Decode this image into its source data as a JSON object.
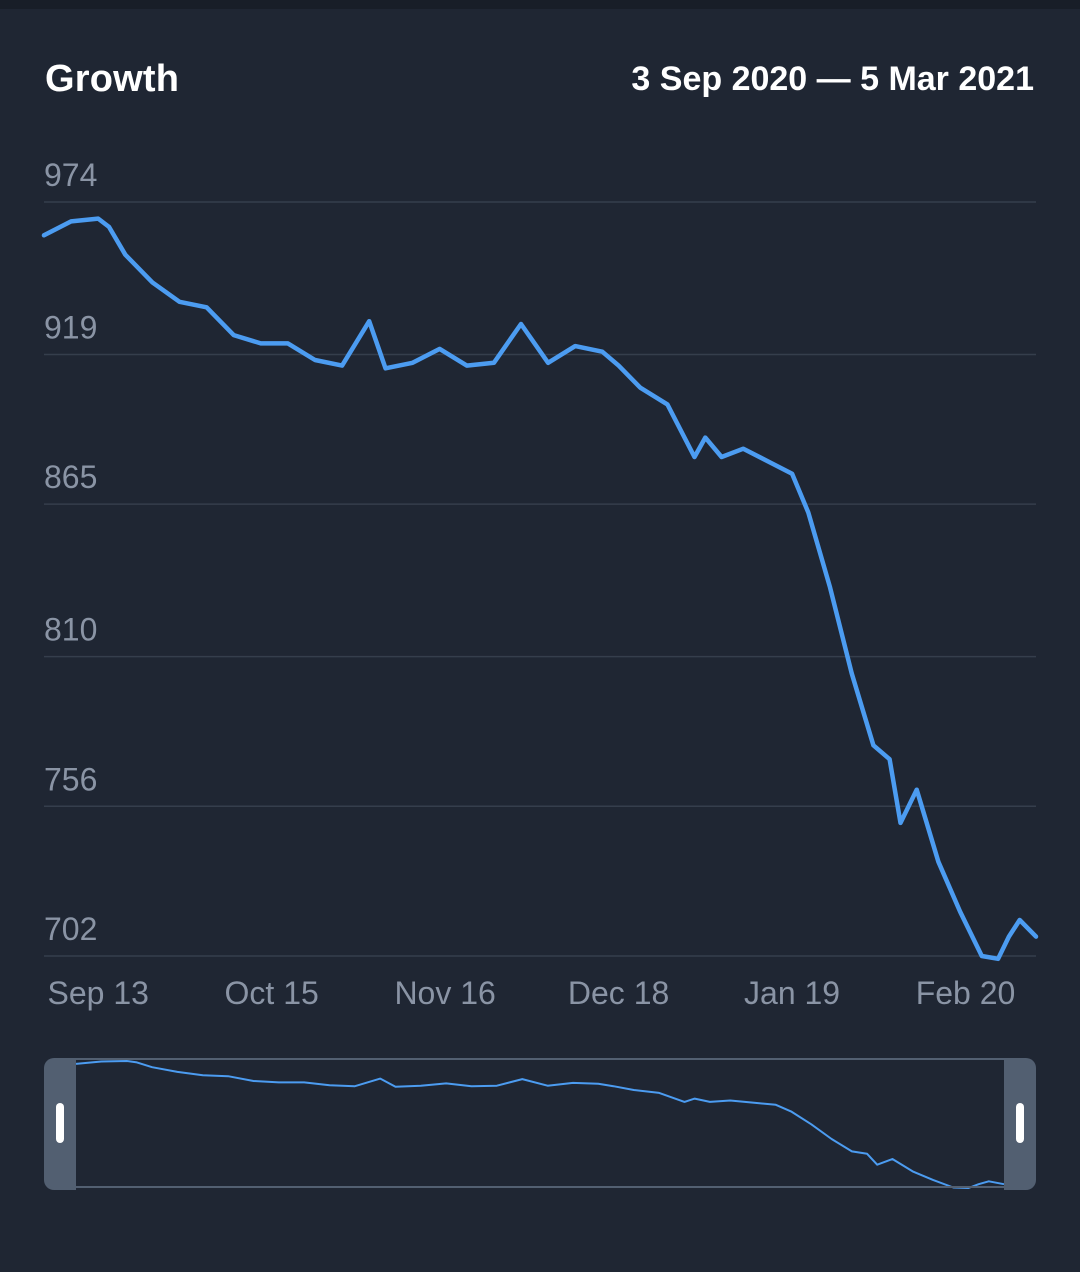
{
  "header": {
    "title": "Growth",
    "date_range": "3 Sep 2020 — 5 Mar 2021"
  },
  "colors": {
    "background": "#1f2633",
    "series": "#4c9cf1",
    "grid": "#353e4c",
    "tick": "#8a94a5",
    "handle": "#525f71"
  },
  "chart_data": {
    "type": "line",
    "title": "Growth",
    "subtitle": "3 Sep 2020 — 5 Mar 2021",
    "xlabel": "",
    "ylabel": "",
    "x_ticks": [
      "Sep 13",
      "Oct 15",
      "Nov 16",
      "Dec 18",
      "Jan 19",
      "Feb 20"
    ],
    "x_tick_dates": [
      "2020-09-13",
      "2020-10-15",
      "2020-11-16",
      "2020-12-18",
      "2021-01-19",
      "2021-02-20"
    ],
    "y_ticks": [
      974,
      919,
      865,
      810,
      756,
      702
    ],
    "ylim": [
      702,
      974
    ],
    "xlim": [
      "2020-09-03",
      "2021-03-05"
    ],
    "grid": true,
    "legend": "none",
    "series": [
      {
        "name": "",
        "x": [
          "2020-09-03",
          "2020-09-08",
          "2020-09-13",
          "2020-09-15",
          "2020-09-18",
          "2020-09-23",
          "2020-09-28",
          "2020-10-03",
          "2020-10-08",
          "2020-10-13",
          "2020-10-18",
          "2020-10-23",
          "2020-10-28",
          "2020-11-02",
          "2020-11-05",
          "2020-11-10",
          "2020-11-15",
          "2020-11-20",
          "2020-11-25",
          "2020-11-30",
          "2020-12-05",
          "2020-12-10",
          "2020-12-15",
          "2020-12-18",
          "2020-12-22",
          "2020-12-27",
          "2021-01-01",
          "2021-01-03",
          "2021-01-06",
          "2021-01-10",
          "2021-01-15",
          "2021-01-19",
          "2021-01-22",
          "2021-01-26",
          "2021-01-30",
          "2021-02-03",
          "2021-02-06",
          "2021-02-08",
          "2021-02-11",
          "2021-02-15",
          "2021-02-19",
          "2021-02-23",
          "2021-02-26",
          "2021-02-28",
          "2021-03-02",
          "2021-03-05"
        ],
        "values": [
          962,
          967,
          968,
          965,
          955,
          945,
          938,
          936,
          926,
          923,
          923,
          917,
          915,
          931,
          914,
          916,
          921,
          915,
          916,
          930,
          916,
          922,
          920,
          915,
          907,
          901,
          882,
          889,
          882,
          885,
          880,
          876,
          862,
          835,
          804,
          778,
          773,
          750,
          762,
          736,
          718,
          702,
          701,
          709,
          715,
          709
        ]
      }
    ]
  },
  "navigator": {
    "start_date": "2020-09-03",
    "end_date": "2021-03-05"
  }
}
